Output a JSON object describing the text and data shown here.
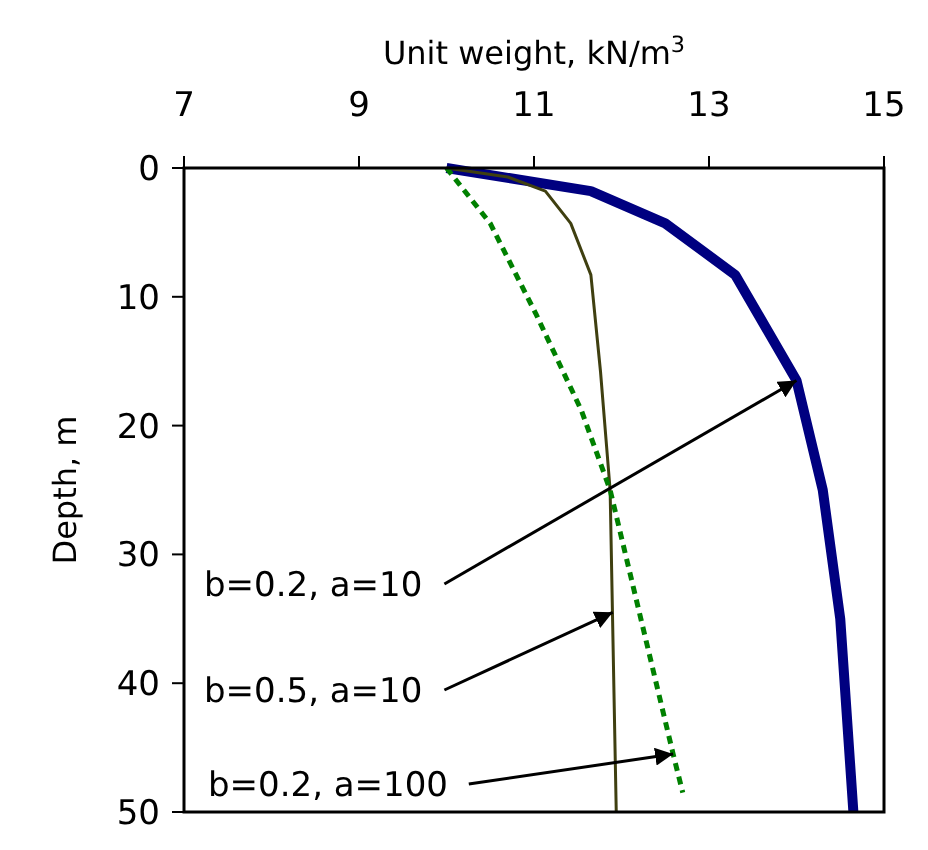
{
  "chart_data": {
    "type": "line",
    "xlabel": "Unit weight, kN/m$^{3}$",
    "ylabel": "Depth, m",
    "xlim": [
      7,
      15
    ],
    "xticks": [
      7,
      9,
      11,
      13,
      15
    ],
    "ylim": [
      50,
      0
    ],
    "yticks": [
      0,
      10,
      20,
      30,
      40,
      50
    ],
    "grid": false,
    "series": [
      {
        "color": "#000080",
        "x": [
          10,
          11.65,
          12.5,
          13.3,
          14.0,
          14.3,
          14.5,
          14.65
        ],
        "values": [
          0,
          1.8,
          4.3,
          8.3,
          16.5,
          25,
          35,
          50
        ]
      },
      {
        "color": "#3f3f10",
        "x": [
          10,
          10.7,
          11.13,
          11.42,
          11.65,
          11.76,
          11.87,
          11.94
        ],
        "values": [
          0,
          0.7,
          1.8,
          4.3,
          8.3,
          15.8,
          25,
          50
        ]
      },
      {
        "color": "#008000",
        "line_style": "dashed",
        "x": [
          10,
          10.5,
          11.02,
          11.54,
          11.87,
          12.59,
          12.7
        ],
        "values": [
          0,
          4.3,
          11.3,
          18.8,
          25,
          45.5,
          48.5
        ]
      }
    ],
    "annotations": [
      {
        "text": "b=0.2, a=10",
        "x": 14.0,
        "y": 16.5
      },
      {
        "text": "b=0.5, a=10",
        "x": 11.9,
        "y": 34.5
      },
      {
        "text": "b=0.2, a=100",
        "x": 12.59,
        "y": 45.5
      }
    ]
  }
}
